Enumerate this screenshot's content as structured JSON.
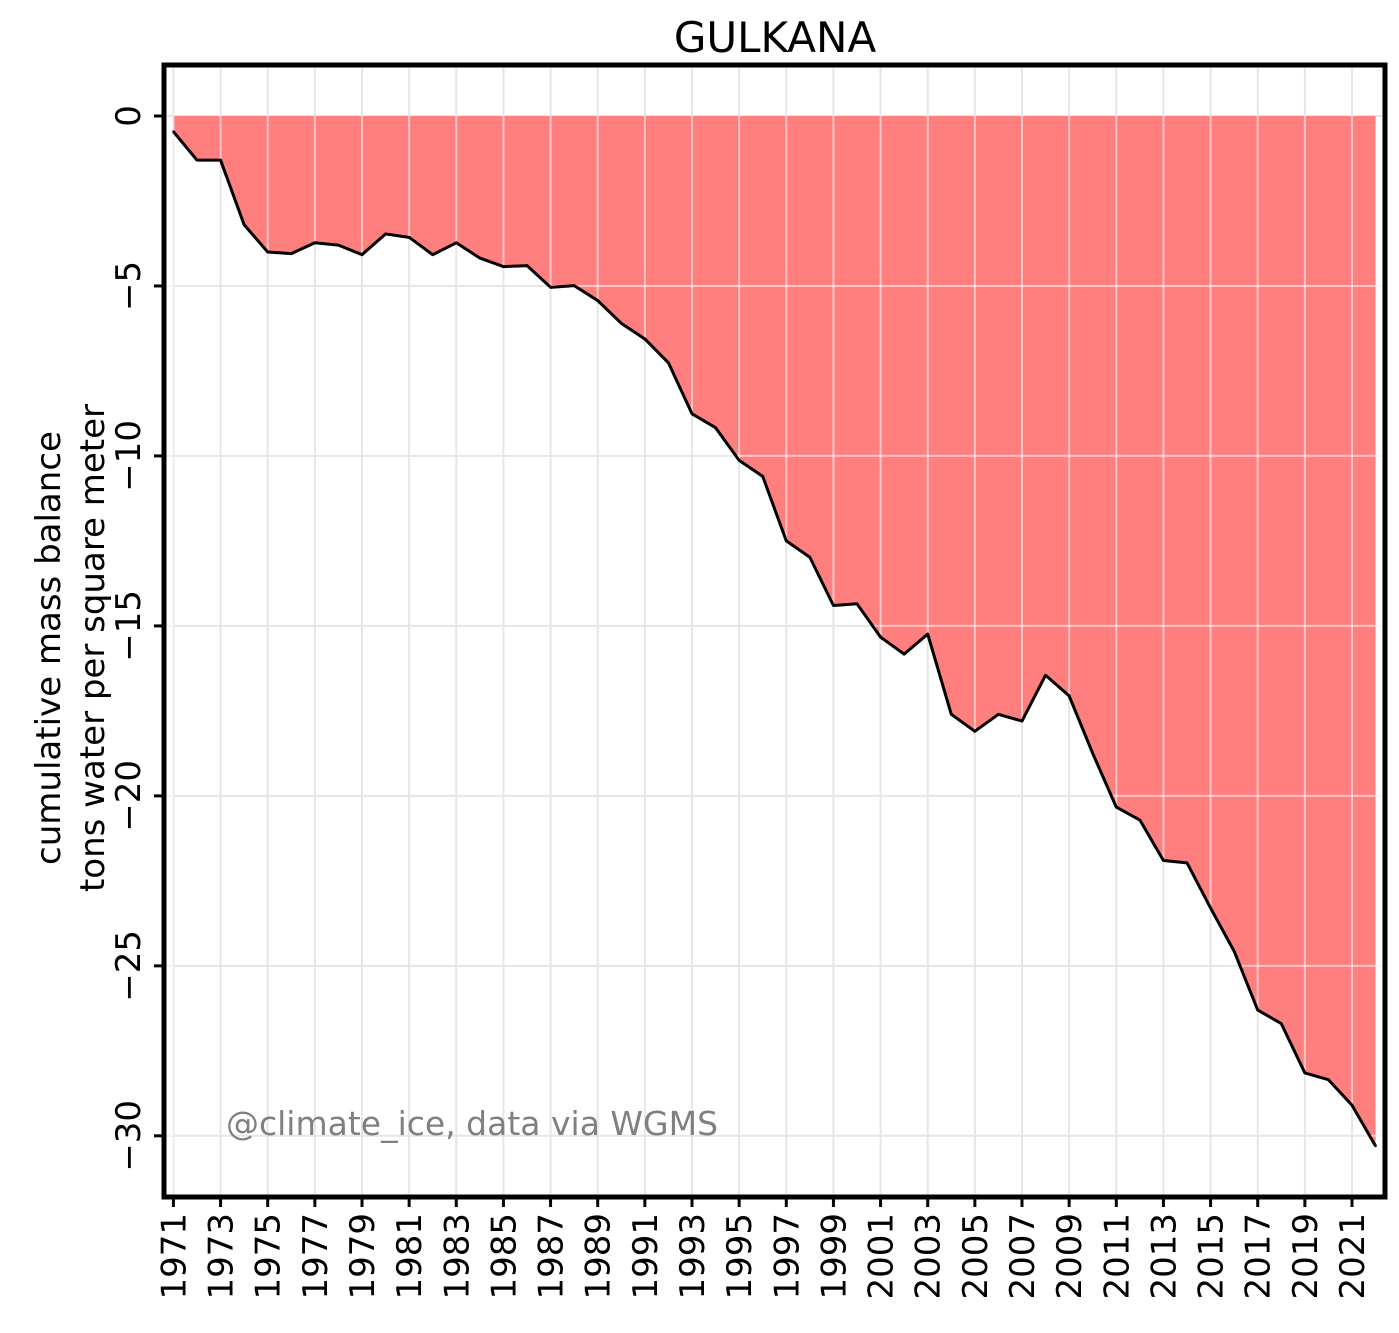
{
  "chart_data": {
    "type": "area",
    "title": "GULKANA",
    "ylabel_line1": "cumulative mass balance",
    "ylabel_line2": "tons water per square meter",
    "credit": "@climate_ice, data via WGMS",
    "x": [
      1971,
      1972,
      1973,
      1974,
      1975,
      1976,
      1977,
      1978,
      1979,
      1980,
      1981,
      1982,
      1983,
      1984,
      1985,
      1986,
      1987,
      1988,
      1989,
      1990,
      1991,
      1992,
      1993,
      1994,
      1995,
      1996,
      1997,
      1998,
      1999,
      2000,
      2001,
      2002,
      2003,
      2004,
      2005,
      2006,
      2007,
      2008,
      2009,
      2010,
      2011,
      2012,
      2013,
      2014,
      2015,
      2016,
      2017,
      2018,
      2019,
      2020,
      2021,
      2022
    ],
    "series": [
      {
        "values": [
          -0.46,
          -1.3,
          -1.3,
          -3.2,
          -4.0,
          -4.05,
          -3.73,
          -3.8,
          -4.08,
          -3.47,
          -3.57,
          -4.08,
          -3.73,
          -4.18,
          -4.43,
          -4.4,
          -5.04,
          -4.99,
          -5.43,
          -6.1,
          -6.56,
          -7.26,
          -8.76,
          -9.17,
          -10.13,
          -10.6,
          -12.5,
          -12.98,
          -14.4,
          -14.35,
          -15.33,
          -15.83,
          -15.24,
          -17.6,
          -18.1,
          -17.6,
          -17.8,
          -16.45,
          -17.06,
          -18.75,
          -20.33,
          -20.71,
          -21.9,
          -21.97,
          -23.3,
          -24.57,
          -26.3,
          -26.7,
          -28.15,
          -28.35,
          -29.1,
          -30.3
        ]
      }
    ],
    "xticks": [
      "1971",
      "1973",
      "1975",
      "1977",
      "1979",
      "1981",
      "1983",
      "1985",
      "1987",
      "1989",
      "1991",
      "1993",
      "1995",
      "1997",
      "1999",
      "2001",
      "2003",
      "2005",
      "2007",
      "2009",
      "2011",
      "2013",
      "2015",
      "2017",
      "2019",
      "2021"
    ],
    "yticks": [
      "0",
      "−5",
      "−10",
      "−15",
      "−20",
      "−25",
      "−30"
    ],
    "ytick_values": [
      0,
      -5,
      -10,
      -15,
      -20,
      -25,
      -30
    ],
    "ylim": [
      -31.8,
      1.5
    ],
    "xlim": [
      1970.6,
      2022.4
    ],
    "grid": true,
    "colors": {
      "fill": "#ff7f7f",
      "line": "#000000",
      "grid": "#e6e6e6",
      "credit": "#808080"
    }
  }
}
